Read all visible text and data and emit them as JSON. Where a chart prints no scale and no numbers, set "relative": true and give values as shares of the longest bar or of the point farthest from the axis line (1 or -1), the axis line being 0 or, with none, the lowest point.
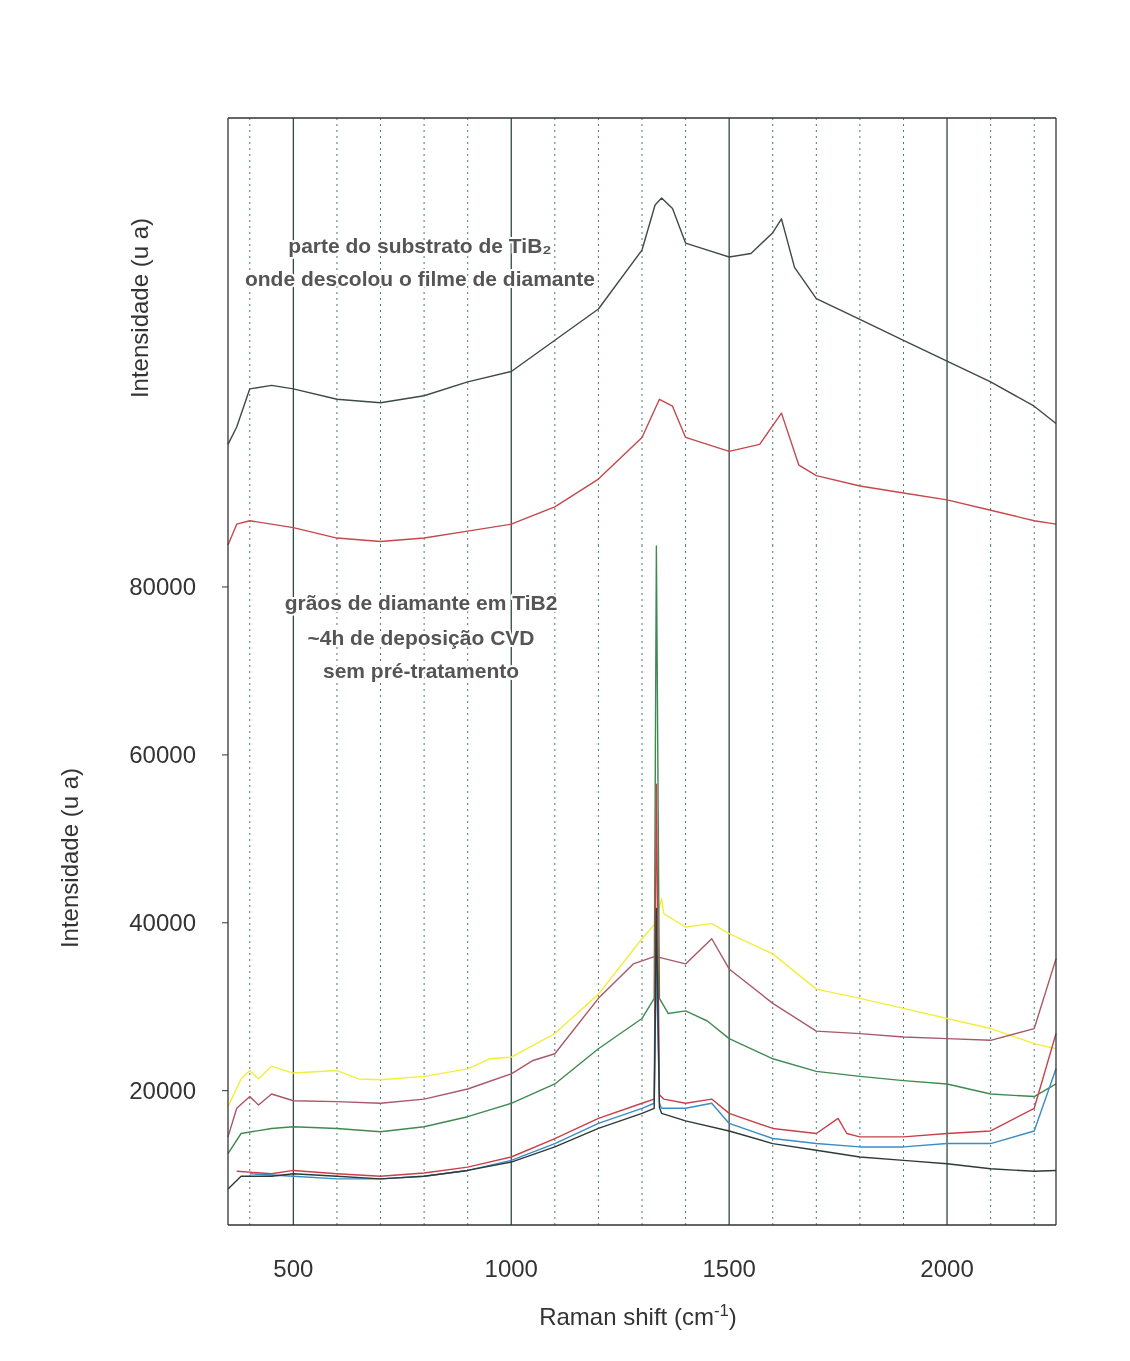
{
  "chart_data": [
    {
      "type": "line",
      "ylabel": "Intensidade (u a)",
      "relative": true,
      "xlim": [
        350,
        2250
      ],
      "xticks": [
        {
          "value": 400,
          "label": null
        },
        500,
        {
          "value": 600,
          "label": null
        },
        {
          "value": 700,
          "label": null
        },
        {
          "value": 800,
          "label": null
        },
        {
          "value": 900,
          "label": null
        },
        1000,
        {
          "value": 1100,
          "label": null
        },
        {
          "value": 1200,
          "label": null
        },
        {
          "value": 1300,
          "label": null
        },
        {
          "value": 1400,
          "label": null
        },
        1500,
        {
          "value": 1600,
          "label": null
        },
        {
          "value": 1700,
          "label": null
        },
        {
          "value": 1800,
          "label": null
        },
        {
          "value": 1900,
          "label": null
        },
        2000,
        {
          "value": 2100,
          "label": null
        },
        {
          "value": 2200,
          "label": null
        }
      ],
      "tick_labels": false,
      "grid": "x",
      "line_style": "solid",
      "marker": "none",
      "annotations": [
        "parte do substrato de TiB₂",
        "onde descolou o filme de diamante"
      ],
      "series": [
        {
          "color": "#3d4a48",
          "x": [
            350,
            370,
            400,
            450,
            500,
            600,
            700,
            800,
            900,
            1000,
            1100,
            1200,
            1300,
            1330,
            1345,
            1370,
            1400,
            1500,
            1550,
            1600,
            1620,
            1650,
            1700,
            1800,
            1900,
            2000,
            2100,
            2200,
            2250
          ],
          "values": [
            0.29,
            0.34,
            0.45,
            0.46,
            0.45,
            0.42,
            0.41,
            0.43,
            0.47,
            0.5,
            0.59,
            0.68,
            0.85,
            0.98,
            1,
            0.97,
            0.87,
            0.83,
            0.84,
            0.9,
            0.94,
            0.8,
            0.71,
            0.65,
            0.59,
            0.53,
            0.47,
            0.4,
            0.35
          ]
        },
        {
          "color": "#c4484c",
          "x": [
            350,
            370,
            400,
            500,
            600,
            700,
            800,
            900,
            1000,
            1100,
            1200,
            1300,
            1340,
            1370,
            1400,
            1500,
            1570,
            1620,
            1660,
            1700,
            1800,
            1900,
            2000,
            2100,
            2200,
            2250
          ],
          "values": [
            0,
            0.06,
            0.07,
            0.05,
            0.02,
            0.01,
            0.02,
            0.04,
            0.06,
            0.11,
            0.19,
            0.31,
            0.42,
            0.4,
            0.31,
            0.27,
            0.29,
            0.38,
            0.23,
            0.2,
            0.17,
            0.15,
            0.13,
            0.1,
            0.07,
            0.06
          ]
        }
      ]
    },
    {
      "type": "line",
      "xlabel": "Raman shift (cm$^{-1}$)",
      "ylabel": "Intensidade (u a)",
      "xlim": [
        350,
        2250
      ],
      "ylim": [
        4000,
        85000
      ],
      "xticks": [
        {
          "value": 400,
          "label": null
        },
        500,
        {
          "value": 600,
          "label": null
        },
        {
          "value": 700,
          "label": null
        },
        {
          "value": 800,
          "label": null
        },
        {
          "value": 900,
          "label": null
        },
        1000,
        {
          "value": 1100,
          "label": null
        },
        {
          "value": 1200,
          "label": null
        },
        {
          "value": 1300,
          "label": null
        },
        {
          "value": 1400,
          "label": null
        },
        1500,
        {
          "value": 1600,
          "label": null
        },
        {
          "value": 1700,
          "label": null
        },
        {
          "value": 1800,
          "label": null
        },
        {
          "value": 1900,
          "label": null
        },
        2000,
        {
          "value": 2100,
          "label": null
        },
        {
          "value": 2200,
          "label": null
        }
      ],
      "yticks": [
        20000,
        40000,
        60000,
        80000
      ],
      "grid": "x",
      "line_style": "solid",
      "marker": "none",
      "annotations": [
        "grãos de diamante em TiB2",
        "~4h de deposição CVD",
        "sem pré-tratamento"
      ],
      "series": [
        {
          "color": "#f2ee3a",
          "x": [
            350,
            380,
            400,
            420,
            450,
            500,
            600,
            650,
            700,
            800,
            900,
            950,
            1000,
            1100,
            1200,
            1300,
            1330,
            1345,
            1350,
            1400,
            1460,
            1500,
            1600,
            1700,
            1800,
            1900,
            2000,
            2100,
            2200,
            2250
          ],
          "values": [
            18100,
            21400,
            22400,
            21400,
            22900,
            22100,
            22400,
            21400,
            21300,
            21700,
            22600,
            23800,
            24000,
            26800,
            31500,
            38100,
            39900,
            42900,
            41100,
            39500,
            39900,
            38700,
            36300,
            32100,
            31000,
            29800,
            28600,
            27400,
            25600,
            25000
          ]
        },
        {
          "color": "#a85868",
          "x": [
            350,
            370,
            400,
            420,
            450,
            500,
            600,
            700,
            800,
            900,
            1000,
            1050,
            1100,
            1200,
            1280,
            1330,
            1400,
            1460,
            1500,
            1600,
            1700,
            1800,
            1900,
            2000,
            2100,
            2200,
            2250
          ],
          "values": [
            14500,
            17900,
            19300,
            18300,
            19600,
            18800,
            18700,
            18500,
            19000,
            20200,
            22000,
            23600,
            24400,
            31000,
            35100,
            36000,
            35100,
            38100,
            34500,
            30400,
            27100,
            26800,
            26400,
            26200,
            26000,
            27400,
            35700
          ]
        },
        {
          "color": "#3f8a50",
          "x": [
            350,
            380,
            450,
            500,
            600,
            700,
            800,
            900,
            1000,
            1100,
            1200,
            1300,
            1328,
            1333,
            1340,
            1360,
            1400,
            1450,
            1500,
            1600,
            1700,
            1800,
            1900,
            2000,
            2100,
            2200,
            2250
          ],
          "values": [
            12500,
            14900,
            15500,
            15700,
            15500,
            15100,
            15700,
            16900,
            18500,
            20800,
            25000,
            28600,
            31000,
            84900,
            31000,
            29200,
            29500,
            28300,
            26200,
            23800,
            22300,
            21700,
            21200,
            20800,
            19600,
            19300,
            20800
          ]
        },
        {
          "color": "#c8404a",
          "x": [
            370,
            450,
            500,
            600,
            700,
            800,
            900,
            1000,
            1100,
            1200,
            1300,
            1328,
            1333,
            1340,
            1350,
            1400,
            1460,
            1500,
            1600,
            1700,
            1750,
            1770,
            1800,
            1900,
            2000,
            2100,
            2200,
            2250
          ],
          "values": [
            10400,
            10100,
            10500,
            10100,
            9800,
            10200,
            10900,
            12100,
            14300,
            16700,
            18500,
            19000,
            56500,
            19500,
            19000,
            18500,
            19000,
            17300,
            15500,
            14900,
            16700,
            14900,
            14500,
            14500,
            14900,
            15200,
            17900,
            26800
          ]
        },
        {
          "color": "#3a8cc8",
          "x": [
            400,
            500,
            600,
            700,
            800,
            900,
            1000,
            1100,
            1200,
            1300,
            1328,
            1333,
            1340,
            1345,
            1400,
            1460,
            1500,
            1600,
            1700,
            1800,
            1900,
            2000,
            2100,
            2200,
            2250
          ],
          "values": [
            10100,
            9800,
            9500,
            9500,
            9800,
            10500,
            11700,
            13700,
            16100,
            17900,
            18500,
            35700,
            18500,
            17900,
            17900,
            18500,
            16100,
            14300,
            13700,
            13300,
            13300,
            13700,
            13700,
            15200,
            22600
          ]
        },
        {
          "color": "#2e3a38",
          "x": [
            350,
            380,
            450,
            500,
            600,
            700,
            800,
            900,
            1000,
            1100,
            1200,
            1300,
            1328,
            1333,
            1340,
            1345,
            1400,
            1500,
            1600,
            1700,
            1800,
            1900,
            2000,
            2100,
            2200,
            2250
          ],
          "values": [
            8300,
            9800,
            9800,
            10100,
            9800,
            9500,
            9800,
            10500,
            11500,
            13300,
            15500,
            17300,
            17900,
            41700,
            18000,
            17300,
            16400,
            15200,
            13700,
            12900,
            12100,
            11700,
            11300,
            10700,
            10400,
            10500
          ]
        }
      ]
    }
  ]
}
